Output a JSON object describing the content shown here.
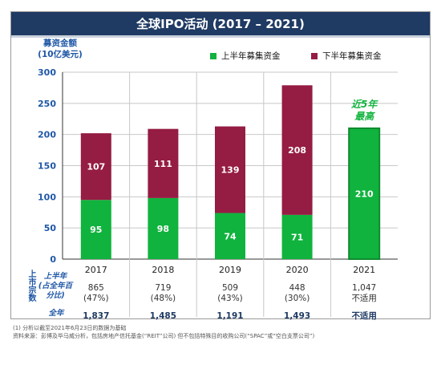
{
  "title": "全球IPO活动 (2017 – 2021)",
  "y_axis_title": [
    "募资金额",
    "(10亿美元)"
  ],
  "legend": [
    {
      "label": "上半年募集资金",
      "color": "#10b33d"
    },
    {
      "label": "下半年募集资金",
      "color": "#951c43"
    }
  ],
  "annotation": [
    "近5年",
    "最高"
  ],
  "chart_data": {
    "type": "bar",
    "stacked": true,
    "categories": [
      "2017",
      "2018",
      "2019",
      "2020",
      "2021"
    ],
    "series": [
      {
        "name": "上半年募集资金",
        "values": [
          95,
          98,
          74,
          71,
          210
        ],
        "color": "#10b33d"
      },
      {
        "name": "下半年募集资金",
        "values": [
          107,
          111,
          139,
          208,
          null
        ],
        "color": "#951c43"
      }
    ],
    "ylim": [
      0,
      300
    ],
    "yticks": [
      0,
      50,
      100,
      150,
      200,
      250,
      300
    ],
    "grid": true,
    "legend_position": "top-right"
  },
  "table": {
    "side_label": "上市宗数",
    "row1_label": [
      "上半年",
      "(占全年百",
      "分比)"
    ],
    "row2_label": "全年",
    "row1": [
      {
        "count": "865",
        "pct": "(47%)"
      },
      {
        "count": "719",
        "pct": "(48%)"
      },
      {
        "count": "509",
        "pct": "(43%)"
      },
      {
        "count": "448",
        "pct": "(30%)"
      },
      {
        "count": "1,047",
        "pct": "不适用"
      }
    ],
    "row2": [
      "1,837",
      "1,485",
      "1,191",
      "1,493",
      "不适用"
    ]
  },
  "footnotes": [
    "(1) 分析以截至2021年6月23日的数据为基础",
    "资料来源：彭博及毕马威分析，包括房地产信托基金(“REIT”公司) 但不包括特殊目的收购公司(“SPAC”或“空白支票公司”)"
  ]
}
